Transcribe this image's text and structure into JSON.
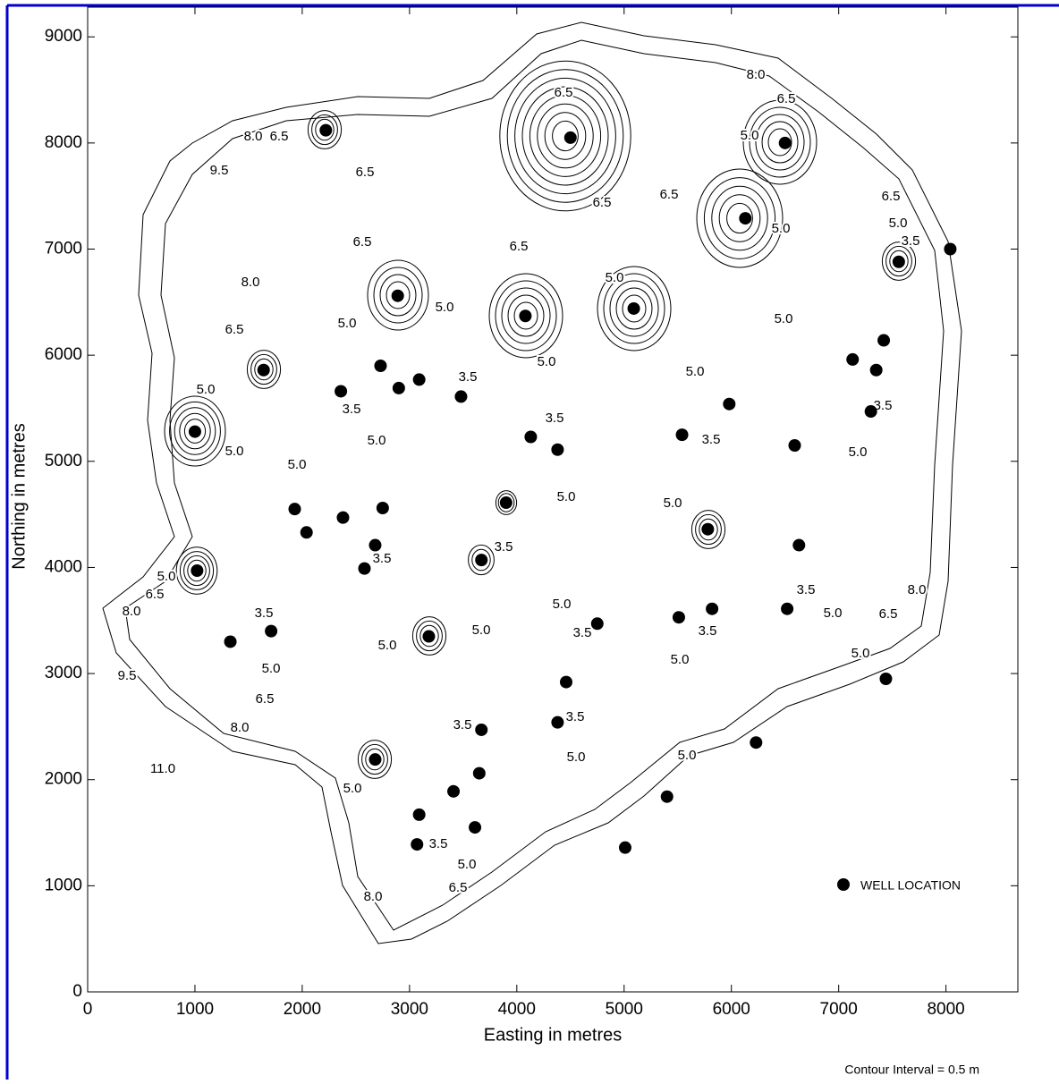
{
  "chart_data": {
    "type": "scatter",
    "x_label": "Easting in metres",
    "y_label": "Northing in metres",
    "note": "Contour Interval = 0.5 m",
    "xlim": [
      0,
      8670
    ],
    "ylim": [
      0,
      9280
    ],
    "xticks": [
      0,
      1000,
      2000,
      3000,
      4000,
      5000,
      6000,
      7000,
      8000
    ],
    "yticks": [
      0,
      1000,
      2000,
      3000,
      4000,
      5000,
      6000,
      7000,
      8000,
      9000
    ],
    "series": [
      {
        "name": "WELL LOCATION",
        "color": "#000000",
        "x": [
          2220,
          4500,
          6500,
          6130,
          8040,
          7560,
          2890,
          4080,
          5090,
          1640,
          2730,
          2360,
          2900,
          3090,
          3480,
          1000,
          4130,
          4380,
          5540,
          5980,
          6590,
          7130,
          7420,
          7350,
          7300,
          1930,
          2380,
          2750,
          2040,
          2680,
          2580,
          3900,
          3670,
          5780,
          6630,
          1020,
          6520,
          5820,
          5510,
          4750,
          3180,
          1330,
          1710,
          4460,
          4380,
          3670,
          2680,
          3650,
          3410,
          3090,
          3610,
          3070,
          5400,
          5010,
          6230,
          7440
        ],
        "values": [
          8120,
          8050,
          8000,
          7290,
          7000,
          6880,
          6560,
          6370,
          6440,
          5860,
          5900,
          5660,
          5690,
          5770,
          5610,
          5280,
          5230,
          5110,
          5250,
          5540,
          5150,
          5960,
          6140,
          5860,
          5470,
          4550,
          4470,
          4560,
          4330,
          4210,
          3990,
          4610,
          4070,
          4360,
          4210,
          3970,
          3610,
          3610,
          3530,
          3470,
          3350,
          3300,
          3400,
          2920,
          2540,
          2470,
          2190,
          2060,
          1890,
          1670,
          1550,
          1390,
          1840,
          1360,
          2350,
          2950
        ]
      }
    ],
    "contour_labels": [
      "8.0",
      "6.5",
      "6.5",
      "8.0",
      "6.5",
      "5.0",
      "9.5",
      "6.5",
      "6.5",
      "6.5",
      "6.5",
      "5.0",
      "5.0",
      "3.5",
      "6.5",
      "6.5",
      "8.0",
      "5.0",
      "5.0",
      "5.0",
      "5.0",
      "6.5",
      "5.0",
      "5.0",
      "3.5",
      "5.0",
      "3.5",
      "3.5",
      "3.5",
      "5.0",
      "5.0",
      "3.5",
      "5.0",
      "5.0",
      "5.0",
      "5.0",
      "3.5",
      "3.5",
      "5.0",
      "6.5",
      "8.0",
      "3.5",
      "5.0",
      "3.5",
      "3.5",
      "8.0",
      "5.0",
      "6.5",
      "5.0",
      "5.0",
      "3.5",
      "5.0",
      "5.0",
      "5.0",
      "9.5",
      "6.5",
      "3.5",
      "3.5",
      "8.0",
      "5.0",
      "5.0",
      "11.0",
      "5.0",
      "3.5",
      "5.0",
      "6.5",
      "8.0"
    ]
  }
}
